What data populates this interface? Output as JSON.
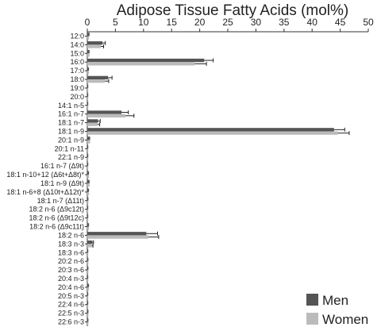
{
  "chart_data": {
    "type": "bar",
    "orientation": "horizontal",
    "title": "Adipose Tissue Fatty Acids (mol%)",
    "xlabel": "",
    "ylabel": "",
    "xlim": [
      0,
      50
    ],
    "xticks": [
      0,
      5,
      10,
      15,
      20,
      25,
      30,
      35,
      40,
      45,
      50
    ],
    "x_axis_position": "top",
    "grid": false,
    "legend_position": "bottom-right",
    "error_bars": true,
    "categories": [
      "12:0",
      "14:0",
      "15:0",
      "16:0",
      "17:0",
      "18:0",
      "19:0",
      "20:0",
      "14:1 n-5",
      "16:1 n-7",
      "18:1 n-7",
      "18:1 n-9",
      "20:1 n-9",
      "20:1 n-11",
      "22:1 n-9",
      "16:1 n-7 (Δ9t)",
      "18:1 n-10+12 (Δ6t+Δ8t)*",
      "18:1 n-9 (Δ9t)",
      "18:1 n-6+8 (Δ10t+Δ12t)*",
      "18:1 n-7 (Δ11t)",
      "18:2 n-6 (Δ9c12t)",
      "18:2 n-6 (Δ9t12c)",
      "18:2 n-6 (Δ9c11t)",
      "18:2 n-6",
      "18:3 n-3",
      "18:3 n-6",
      "20:2 n-6",
      "20:3 n-6",
      "20:4 n-3",
      "20:4 n-6",
      "20:5 n-3",
      "22:4 n-6",
      "22:5 n-3",
      "22:6 n-3"
    ],
    "series": [
      {
        "name": "Men",
        "color": "#555555",
        "values": [
          0.4,
          2.7,
          0.4,
          20.8,
          0.3,
          3.7,
          0.1,
          0.1,
          0.1,
          6.1,
          1.9,
          43.9,
          0.5,
          0.1,
          0.1,
          0.1,
          0.3,
          0.4,
          0.3,
          0.2,
          0.1,
          0.1,
          0.3,
          10.5,
          0.9,
          0.1,
          0.2,
          0.2,
          0.1,
          0.3,
          0.1,
          0.1,
          0.2,
          0.2
        ],
        "errors": [
          0.1,
          0.5,
          0.1,
          1.6,
          0.1,
          0.7,
          0.05,
          0.05,
          0.05,
          1.2,
          0.4,
          1.9,
          0.1,
          0.05,
          0.05,
          0.05,
          0.1,
          0.1,
          0.1,
          0.05,
          0.05,
          0.05,
          0.1,
          2.0,
          0.2,
          0.05,
          0.05,
          0.05,
          0.05,
          0.1,
          0.05,
          0.05,
          0.05,
          0.05
        ]
      },
      {
        "name": "Women",
        "color": "#bbbbbb",
        "values": [
          0.3,
          2.4,
          0.4,
          19.1,
          0.3,
          3.1,
          0.1,
          0.1,
          0.1,
          6.8,
          1.8,
          44.6,
          0.5,
          0.1,
          0.1,
          0.1,
          0.3,
          0.4,
          0.3,
          0.2,
          0.1,
          0.1,
          0.3,
          10.9,
          0.8,
          0.1,
          0.2,
          0.2,
          0.1,
          0.3,
          0.1,
          0.1,
          0.2,
          0.2
        ],
        "errors": [
          0.1,
          0.5,
          0.1,
          2.1,
          0.1,
          0.7,
          0.05,
          0.05,
          0.05,
          1.5,
          0.4,
          2.0,
          0.1,
          0.05,
          0.05,
          0.05,
          0.1,
          0.1,
          0.1,
          0.05,
          0.05,
          0.05,
          0.1,
          1.8,
          0.2,
          0.05,
          0.05,
          0.05,
          0.05,
          0.1,
          0.05,
          0.05,
          0.05,
          0.05
        ]
      }
    ]
  }
}
